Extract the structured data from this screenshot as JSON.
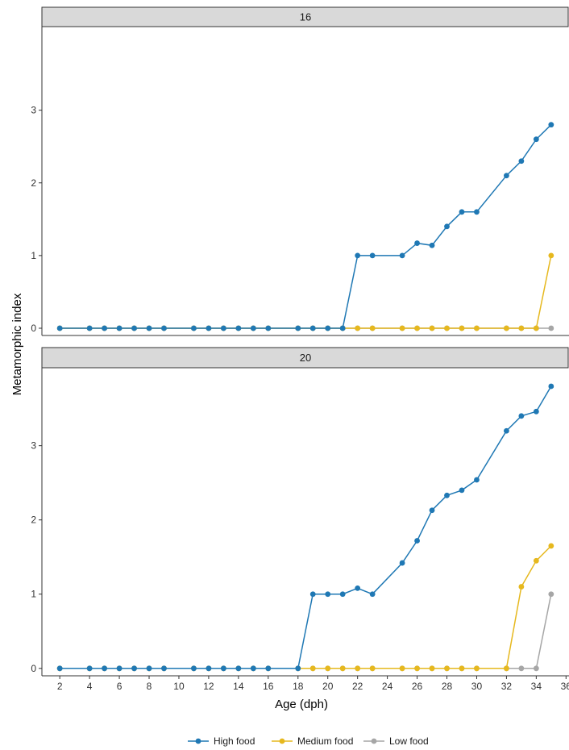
{
  "chart_data": {
    "type": "line",
    "xlabel": "Age (dph)",
    "ylabel": "Metamorphic index",
    "xlim": [
      0.8,
      36.2
    ],
    "x_ticks": [
      2,
      4,
      6,
      8,
      10,
      12,
      14,
      16,
      18,
      20,
      22,
      24,
      26,
      28,
      30,
      32,
      34,
      36
    ],
    "grid": false,
    "legend_position": "bottom",
    "legend": [
      "High food",
      "Medium food",
      "Low food"
    ],
    "colors": {
      "High food": "#1f78b4",
      "Medium food": "#e6b81e",
      "Low food": "#a6a6a6"
    },
    "panels": [
      {
        "strip": "16",
        "ylim": [
          -0.1,
          4.15
        ],
        "y_ticks": [
          0,
          1,
          2,
          3
        ],
        "series": [
          {
            "name": "High food",
            "x": [
              2,
              4,
              5,
              6,
              7,
              8,
              9,
              11,
              12,
              13,
              14,
              15,
              16,
              18,
              19,
              20,
              21,
              22,
              23,
              25,
              26,
              27,
              28,
              29,
              30,
              32,
              33,
              34,
              35
            ],
            "values": [
              0,
              0,
              0,
              0,
              0,
              0,
              0,
              0,
              0,
              0,
              0,
              0,
              0,
              0,
              0,
              0,
              0,
              1,
              1,
              1,
              1.17,
              1.14,
              1.4,
              1.6,
              1.6,
              2.1,
              2.3,
              2.6,
              2.8
            ]
          },
          {
            "name": "Medium food",
            "x": [
              2,
              4,
              5,
              6,
              7,
              8,
              9,
              11,
              12,
              13,
              14,
              15,
              16,
              18,
              19,
              20,
              21,
              22,
              23,
              25,
              26,
              27,
              28,
              29,
              30,
              32,
              33,
              34,
              35
            ],
            "values": [
              0,
              0,
              0,
              0,
              0,
              0,
              0,
              0,
              0,
              0,
              0,
              0,
              0,
              0,
              0,
              0,
              0,
              0,
              0,
              0,
              0,
              0,
              0,
              0,
              0,
              0,
              0,
              0,
              1
            ]
          },
          {
            "name": "Low food",
            "x": [
              2,
              4,
              5,
              6,
              7,
              8,
              9,
              11,
              12,
              13,
              14,
              15,
              16,
              18,
              19,
              20,
              21,
              22,
              23,
              25,
              26,
              27,
              28,
              29,
              30,
              32,
              33,
              34,
              35
            ],
            "values": [
              0,
              0,
              0,
              0,
              0,
              0,
              0,
              0,
              0,
              0,
              0,
              0,
              0,
              0,
              0,
              0,
              0,
              0,
              0,
              0,
              0,
              0,
              0,
              0,
              0,
              0,
              0,
              0,
              0
            ]
          }
        ]
      },
      {
        "strip": "20",
        "ylim": [
          -0.1,
          4.05
        ],
        "y_ticks": [
          0,
          1,
          2,
          3
        ],
        "series": [
          {
            "name": "High food",
            "x": [
              2,
              4,
              5,
              6,
              7,
              8,
              9,
              11,
              12,
              13,
              14,
              15,
              16,
              18,
              19,
              20,
              21,
              22,
              23,
              25,
              26,
              27,
              28,
              29,
              30,
              32,
              33,
              34,
              35
            ],
            "values": [
              0,
              0,
              0,
              0,
              0,
              0,
              0,
              0,
              0,
              0,
              0,
              0,
              0,
              0,
              1,
              1,
              1,
              1.08,
              1,
              1.42,
              1.72,
              2.13,
              2.33,
              2.4,
              2.54,
              3.2,
              3.4,
              3.46,
              3.8
            ]
          },
          {
            "name": "Medium food",
            "x": [
              2,
              4,
              5,
              6,
              7,
              8,
              9,
              11,
              12,
              13,
              14,
              15,
              16,
              18,
              19,
              20,
              21,
              22,
              23,
              25,
              26,
              27,
              28,
              29,
              30,
              32,
              33,
              34,
              35
            ],
            "values": [
              0,
              0,
              0,
              0,
              0,
              0,
              0,
              0,
              0,
              0,
              0,
              0,
              0,
              0,
              0,
              0,
              0,
              0,
              0,
              0,
              0,
              0,
              0,
              0,
              0,
              0,
              1.1,
              1.45,
              1.65
            ]
          },
          {
            "name": "Low food",
            "x": [
              2,
              4,
              5,
              6,
              7,
              8,
              9,
              11,
              12,
              13,
              14,
              15,
              16,
              18,
              19,
              20,
              21,
              22,
              23,
              25,
              26,
              27,
              28,
              29,
              30,
              32,
              33,
              34,
              35
            ],
            "values": [
              0,
              0,
              0,
              0,
              0,
              0,
              0,
              0,
              0,
              0,
              0,
              0,
              0,
              0,
              0,
              0,
              0,
              0,
              0,
              0,
              0,
              0,
              0,
              0,
              0,
              0,
              0,
              0,
              1
            ]
          }
        ]
      }
    ]
  }
}
